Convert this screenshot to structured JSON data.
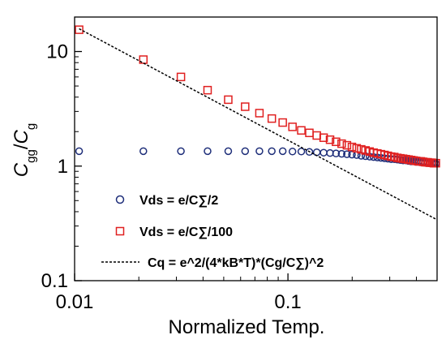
{
  "chart_data": {
    "type": "scatter",
    "xlabel": "Normalized Temp.",
    "ylabel": "C_gg/C_g",
    "xscale": "log",
    "yscale": "log",
    "xlim": [
      0.01,
      0.5
    ],
    "ylim": [
      0.1,
      20
    ],
    "x_ticks": [
      0.01,
      0.1
    ],
    "x_tick_labels": [
      "0.01",
      "0.1"
    ],
    "y_ticks": [
      0.1,
      1,
      10
    ],
    "y_tick_labels": [
      "0.1",
      "1",
      "10"
    ],
    "grid": false,
    "legend_position": "bottom-center",
    "series": [
      {
        "name": "Vds = e/C∑/2",
        "marker": "circle",
        "color": "#1f2f7a",
        "x": [
          0.0105,
          0.021,
          0.0315,
          0.042,
          0.0525,
          0.063,
          0.0735,
          0.084,
          0.0945,
          0.105,
          0.1155,
          0.126,
          0.1365,
          0.147,
          0.1575,
          0.168,
          0.1785,
          0.189,
          0.1995,
          0.21,
          0.2205,
          0.231,
          0.2415,
          0.252,
          0.2625,
          0.273,
          0.2835,
          0.294,
          0.3045,
          0.315,
          0.3255,
          0.336,
          0.3465,
          0.357,
          0.3675,
          0.378,
          0.3885,
          0.399,
          0.4095,
          0.42,
          0.4305,
          0.441,
          0.4515,
          0.462,
          0.4725,
          0.483,
          0.4935
        ],
        "y": [
          1.35,
          1.35,
          1.35,
          1.35,
          1.35,
          1.35,
          1.35,
          1.35,
          1.35,
          1.34,
          1.34,
          1.33,
          1.32,
          1.31,
          1.3,
          1.29,
          1.28,
          1.27,
          1.26,
          1.25,
          1.23,
          1.22,
          1.21,
          1.2,
          1.19,
          1.18,
          1.17,
          1.16,
          1.15,
          1.15,
          1.14,
          1.13,
          1.12,
          1.12,
          1.11,
          1.1,
          1.1,
          1.09,
          1.09,
          1.08,
          1.08,
          1.07,
          1.07,
          1.06,
          1.06,
          1.06,
          1.05
        ]
      },
      {
        "name": "Vds = e/C∑/100",
        "marker": "square",
        "color": "#e02020",
        "x": [
          0.0105,
          0.021,
          0.0315,
          0.042,
          0.0525,
          0.063,
          0.0735,
          0.084,
          0.0945,
          0.105,
          0.1155,
          0.126,
          0.1365,
          0.147,
          0.1575,
          0.168,
          0.1785,
          0.189,
          0.1995,
          0.21,
          0.2205,
          0.231,
          0.2415,
          0.252,
          0.2625,
          0.273,
          0.2835,
          0.294,
          0.3045,
          0.315,
          0.3255,
          0.336,
          0.3465,
          0.357,
          0.3675,
          0.378,
          0.3885,
          0.399,
          0.4095,
          0.42,
          0.4305,
          0.441,
          0.4515,
          0.462,
          0.4725,
          0.483,
          0.4935
        ],
        "y": [
          15.5,
          8.5,
          6.0,
          4.6,
          3.8,
          3.3,
          2.9,
          2.6,
          2.4,
          2.2,
          2.05,
          1.95,
          1.85,
          1.77,
          1.7,
          1.63,
          1.57,
          1.52,
          1.47,
          1.43,
          1.4,
          1.37,
          1.34,
          1.31,
          1.29,
          1.27,
          1.25,
          1.23,
          1.21,
          1.2,
          1.18,
          1.17,
          1.16,
          1.15,
          1.14,
          1.13,
          1.12,
          1.11,
          1.1,
          1.1,
          1.09,
          1.08,
          1.08,
          1.07,
          1.07,
          1.06,
          1.06
        ]
      },
      {
        "name": "Cq = e^2/(4*kB*T)*(Cg/C∑)^2",
        "marker": "dashed-line",
        "color": "#000000",
        "x": [
          0.0105,
          0.5
        ],
        "y": [
          15.8,
          0.34
        ]
      }
    ]
  }
}
